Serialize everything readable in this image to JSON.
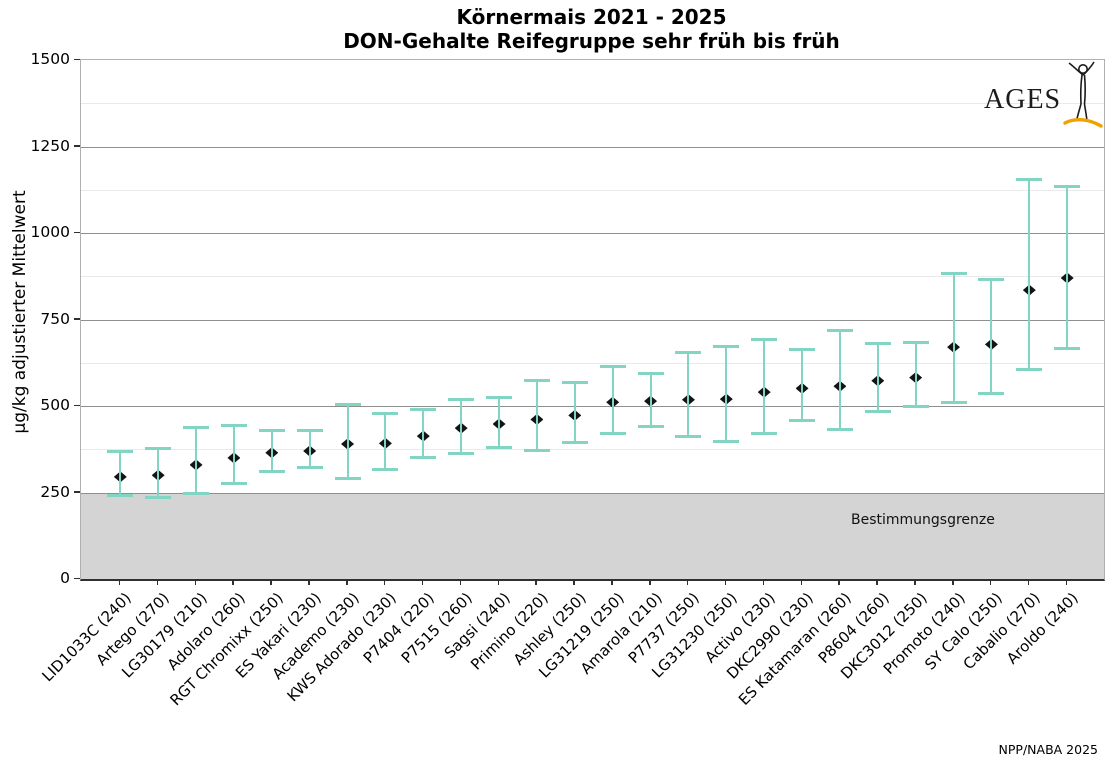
{
  "title": {
    "line1": "Körnermais 2021 - 2025",
    "line2": "DON-Gehalte Reifegruppe sehr früh bis früh"
  },
  "logo": {
    "text": "AGES",
    "figure_icon": "human-figure-icon",
    "swoosh_color": "#f0a202",
    "figure_color": "#1c1c1c"
  },
  "footer": {
    "credit": "NPP/NABA 2025"
  },
  "chart_data": {
    "type": "scatter",
    "subtype": "point-with-errorbars",
    "title": "Körnermais 2021 - 2025 / DON-Gehalte Reifegruppe sehr früh bis früh",
    "xlabel": "",
    "ylabel": "µg/kg adjustierter Mittelwert",
    "ylim": [
      0,
      1500
    ],
    "yticks": [
      0,
      250,
      500,
      750,
      1000,
      1250,
      1500
    ],
    "minor_gridlines": [
      375,
      625,
      875,
      1125,
      1375
    ],
    "grid": true,
    "legend": "none",
    "band": {
      "label": "Bestimmungsgrenze",
      "from": 0,
      "to": 250,
      "color": "#d4d4d4"
    },
    "colors": {
      "errorbar": "#82d4c3",
      "marker": "#141414"
    },
    "categories": [
      "LID1033C (240)",
      "Artego (270)",
      "LG30179 (210)",
      "Adolaro (260)",
      "RGT Chromixx (250)",
      "ES Yakari (230)",
      "Academo (230)",
      "KWS Adorado (230)",
      "P7404 (220)",
      "P7515 (260)",
      "Sagsi (240)",
      "Primino (220)",
      "Ashley (250)",
      "LG31219 (250)",
      "Amarola (210)",
      "P7737 (250)",
      "LG31230 (250)",
      "Activo (230)",
      "DKC2990 (230)",
      "ES Katamaran (260)",
      "P8604 (260)",
      "DKC3012 (250)",
      "Promoto (240)",
      "SY Calo (250)",
      "Cabalio (270)",
      "Aroldo (240)"
    ],
    "series": [
      {
        "name": "adjustierter Mittelwert",
        "values": [
          295,
          300,
          330,
          350,
          365,
          370,
          390,
          392,
          413,
          436,
          448,
          461,
          473,
          511,
          514,
          518,
          520,
          540,
          551,
          557,
          573,
          582,
          670,
          678,
          835,
          870
        ],
        "ci_low": [
          240,
          235,
          245,
          275,
          310,
          320,
          290,
          315,
          350,
          360,
          380,
          370,
          393,
          420,
          440,
          410,
          395,
          420,
          456,
          431,
          482,
          497,
          510,
          535,
          605,
          666
        ],
        "ci_high": [
          370,
          380,
          440,
          445,
          430,
          430,
          505,
          480,
          490,
          520,
          525,
          575,
          570,
          615,
          595,
          655,
          672,
          695,
          664,
          721,
          683,
          685,
          884,
          866,
          1156,
          1136
        ]
      }
    ]
  }
}
